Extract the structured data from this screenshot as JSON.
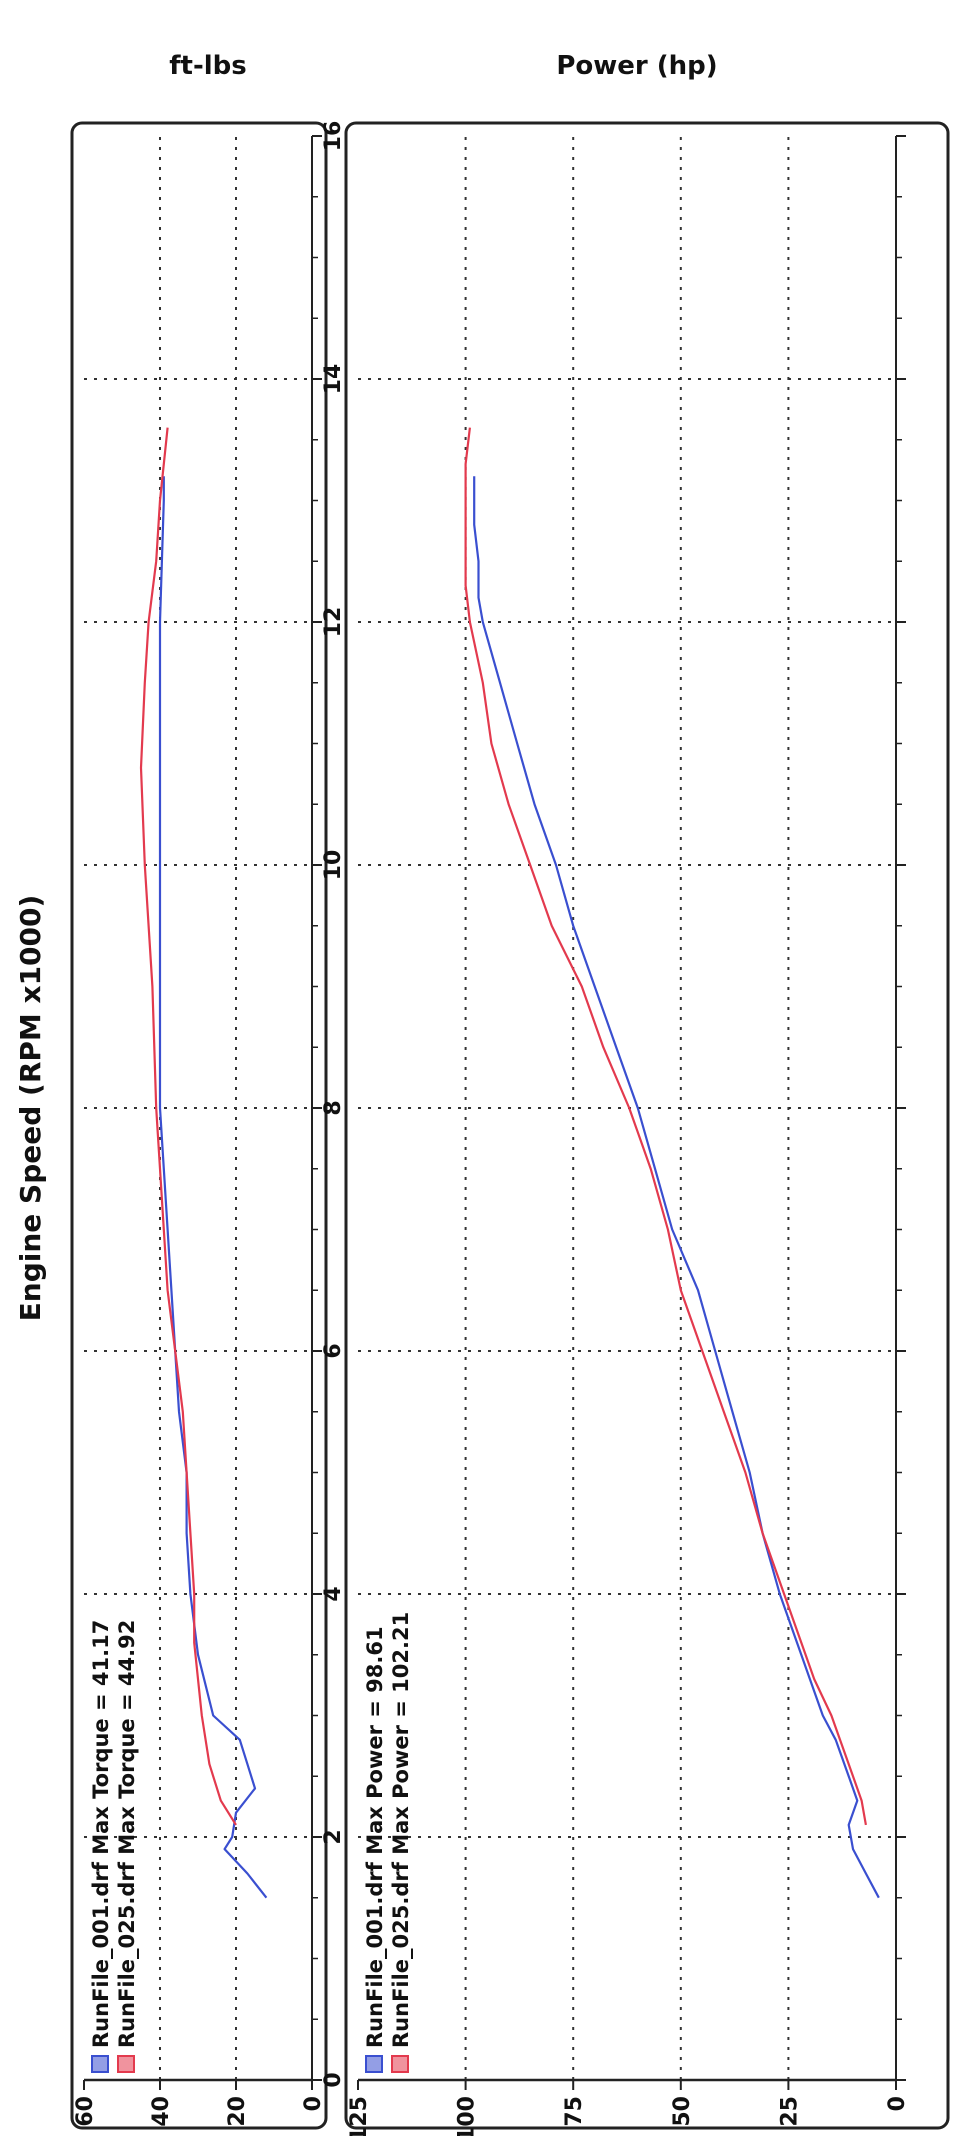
{
  "chart_data": [
    {
      "type": "line",
      "title": "",
      "xlabel": "Engine Speed (RPM x1000)",
      "ylabel": "Power (hp)",
      "xlim": [
        0,
        16
      ],
      "ylim": [
        0,
        125
      ],
      "xticks": [
        "0",
        "2",
        "4",
        "6",
        "8",
        "10",
        "12",
        "14",
        "16"
      ],
      "yticks": [
        "0",
        "25",
        "50",
        "75",
        "100",
        "125"
      ],
      "grid": true,
      "legend_position": "top-left",
      "series": [
        {
          "name": "RunFile_001.drf Max Power = 98.61",
          "color": "#3a4fd0",
          "x": [
            1.5,
            1.7,
            1.9,
            2.1,
            2.3,
            2.5,
            2.8,
            3.0,
            3.3,
            3.6,
            4.0,
            4.5,
            5.0,
            5.5,
            6.0,
            6.5,
            7.0,
            7.5,
            8.0,
            8.5,
            9.0,
            9.5,
            10.0,
            10.5,
            11.0,
            11.5,
            12.0,
            12.2,
            12.5,
            12.8,
            13.0,
            13.2
          ],
          "y": [
            4,
            7,
            10,
            11,
            9,
            11,
            14,
            17,
            20,
            23,
            27,
            31,
            34,
            38,
            42,
            46,
            52,
            56,
            60,
            65,
            70,
            75,
            79,
            84,
            88,
            92,
            96,
            97,
            97,
            98,
            98,
            98
          ]
        },
        {
          "name": "RunFile_025.drf Max Power = 102.21",
          "color": "#e33a4e",
          "x": [
            2.1,
            2.3,
            2.6,
            3.0,
            3.3,
            3.6,
            4.0,
            4.5,
            5.0,
            5.5,
            6.0,
            6.5,
            7.0,
            7.5,
            8.0,
            8.5,
            9.0,
            9.5,
            10.0,
            10.5,
            11.0,
            11.5,
            12.0,
            12.3,
            12.6,
            13.0,
            13.3,
            13.6
          ],
          "y": [
            7,
            8,
            11,
            15,
            19,
            22,
            26,
            31,
            35,
            40,
            45,
            50,
            53,
            57,
            62,
            68,
            73,
            80,
            85,
            90,
            94,
            96,
            99,
            100,
            100,
            100,
            100,
            99
          ]
        }
      ]
    },
    {
      "type": "line",
      "title": "",
      "xlabel": "Engine Speed (RPM x1000)",
      "ylabel": "ft-lbs",
      "xlim": [
        0,
        16
      ],
      "ylim": [
        0,
        60
      ],
      "xticks": [
        "0",
        "2",
        "4",
        "6",
        "8",
        "10",
        "12",
        "14",
        "16"
      ],
      "yticks": [
        "0",
        "20",
        "40",
        "60"
      ],
      "grid": true,
      "legend_position": "top-left",
      "series": [
        {
          "name": "RunFile_001.drf Max Torque = 41.17",
          "color": "#3a4fd0",
          "x": [
            1.5,
            1.7,
            1.9,
            2.0,
            2.2,
            2.4,
            2.6,
            2.8,
            3.0,
            3.5,
            4.0,
            4.5,
            5.0,
            5.5,
            6.0,
            6.5,
            7.0,
            7.5,
            8.0,
            9.0,
            10.0,
            11.0,
            12.0,
            13.0,
            13.2
          ],
          "y": [
            12,
            17,
            23,
            21,
            20,
            15,
            17,
            19,
            26,
            30,
            32,
            33,
            33,
            35,
            36,
            37,
            38,
            39,
            40,
            40,
            40,
            40,
            40,
            39,
            39
          ]
        },
        {
          "name": "RunFile_025.drf Max Torque = 44.92",
          "color": "#e33a4e",
          "x": [
            2.1,
            2.3,
            2.6,
            3.0,
            3.3,
            3.6,
            4.0,
            4.5,
            5.0,
            5.5,
            6.0,
            6.5,
            7.0,
            7.5,
            8.0,
            9.0,
            10.0,
            10.8,
            11.5,
            12.0,
            12.5,
            13.0,
            13.6
          ],
          "y": [
            20,
            24,
            27,
            29,
            30,
            31,
            31,
            32,
            33,
            34,
            36,
            38,
            39,
            40,
            41,
            42,
            44,
            45,
            44,
            43,
            41,
            40,
            38
          ]
        }
      ]
    }
  ]
}
